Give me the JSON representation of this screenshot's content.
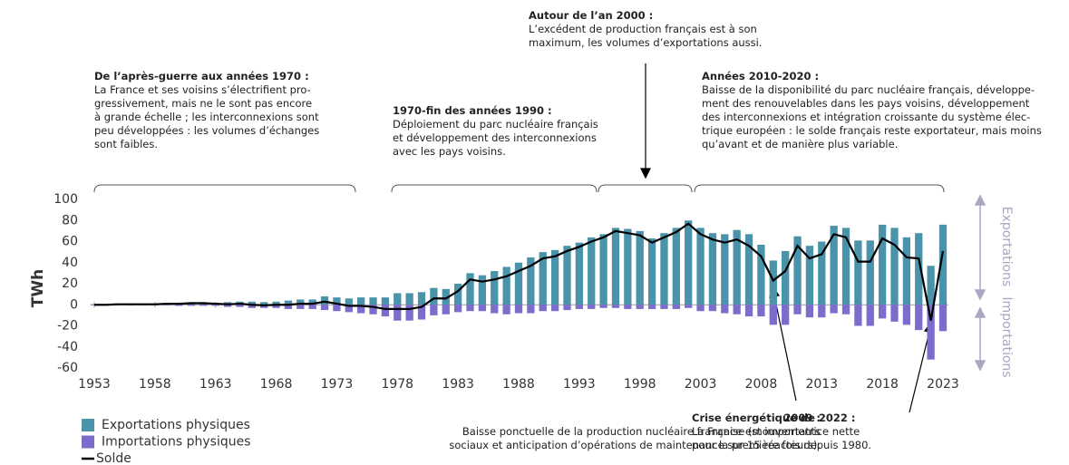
{
  "chart_data": {
    "type": "bar",
    "y_label": "TWh",
    "x": [
      1953,
      1954,
      1955,
      1956,
      1957,
      1958,
      1959,
      1960,
      1961,
      1962,
      1963,
      1964,
      1965,
      1966,
      1967,
      1968,
      1969,
      1970,
      1971,
      1972,
      1973,
      1974,
      1975,
      1976,
      1977,
      1978,
      1979,
      1980,
      1981,
      1982,
      1983,
      1984,
      1985,
      1986,
      1987,
      1988,
      1989,
      1990,
      1991,
      1992,
      1993,
      1994,
      1995,
      1996,
      1997,
      1998,
      1999,
      2000,
      2001,
      2002,
      2003,
      2004,
      2005,
      2006,
      2007,
      2008,
      2009,
      2010,
      2011,
      2012,
      2013,
      2014,
      2015,
      2016,
      2017,
      2018,
      2019,
      2020,
      2021,
      2022,
      2023
    ],
    "xlim": [
      1953,
      2023
    ],
    "xticks": [
      1953,
      1958,
      1963,
      1968,
      1973,
      1978,
      1983,
      1988,
      1993,
      1998,
      2003,
      2008,
      2013,
      2018,
      2023
    ],
    "ylim": [
      -60,
      100
    ],
    "yticks": [
      100,
      80,
      60,
      40,
      20,
      0,
      -20,
      -40,
      -60
    ],
    "grid": false,
    "series": [
      {
        "name": "Exportations physiques",
        "color": "#4a93aa",
        "values": [
          0.5,
          0.5,
          1,
          1,
          1,
          1,
          1.5,
          2,
          2.5,
          2.5,
          2,
          2.5,
          3,
          3,
          2.5,
          3,
          4,
          5,
          5,
          8,
          7,
          6,
          7,
          7,
          7,
          11,
          11,
          12,
          16,
          15,
          20,
          30,
          28,
          32,
          36,
          40,
          45,
          50,
          52,
          56,
          59,
          64,
          67,
          73,
          72,
          70,
          63,
          68,
          73,
          80,
          73,
          68,
          67,
          71,
          67,
          57,
          42,
          51,
          65,
          56,
          60,
          75,
          73,
          61,
          61,
          76,
          73,
          64,
          68,
          37,
          76
        ]
      },
      {
        "name": "Importations physiques",
        "color": "#7d6ccc",
        "values": [
          -0.5,
          -0.5,
          -0.5,
          -0.5,
          -0.5,
          -0.5,
          -0.5,
          -1,
          -1,
          -1,
          -1,
          -2,
          -2,
          -3,
          -3,
          -3,
          -4,
          -4,
          -4,
          -5,
          -6,
          -7,
          -8,
          -9,
          -11,
          -15,
          -15,
          -14,
          -10,
          -9,
          -7,
          -6,
          -6,
          -8,
          -9,
          -8,
          -8,
          -6,
          -6,
          -5,
          -4,
          -4,
          -3,
          -3,
          -4,
          -4,
          -4,
          -4,
          -4,
          -3,
          -6,
          -6,
          -8,
          -9,
          -11,
          -11,
          -19,
          -19,
          -9,
          -12,
          -12,
          -8,
          -9,
          -20,
          -20,
          -13,
          -16,
          -19,
          -24,
          -52,
          -25
        ]
      },
      {
        "name": "Solde",
        "type": "line",
        "color": "#000000",
        "values": [
          0,
          0,
          0.5,
          0.5,
          0.5,
          0.5,
          1,
          1,
          1.5,
          1.5,
          1,
          0.5,
          1,
          0,
          -0.5,
          0,
          0,
          1,
          1,
          3,
          1,
          -1,
          -1,
          -2,
          -4,
          -4,
          -4,
          -2,
          6,
          6,
          13,
          24,
          22,
          24,
          27,
          32,
          37,
          44,
          46,
          51,
          55,
          60,
          64,
          70,
          68,
          66,
          59,
          64,
          69,
          77,
          67,
          62,
          59,
          62,
          56,
          46,
          23,
          32,
          56,
          44,
          48,
          67,
          64,
          41,
          41,
          63,
          57,
          45,
          44,
          -15,
          51
        ]
      }
    ],
    "side_labels": [
      "Exportations",
      "Importations"
    ],
    "annotations": [
      {
        "title": "De l’après-guerre aux années 1970 :",
        "lines": [
          "La France et ses voisins s’électrifient pro-",
          "gressivement, mais ne le sont pas encore",
          "à grande échelle ; les interconnexions sont",
          "peu développées : les volumes d’échanges",
          "sont faibles."
        ]
      },
      {
        "title": "1970-fin des années 1990 :",
        "lines": [
          "Déploiement du parc nucléaire français",
          "et développement des interconnexions",
          "avec les pays voisins."
        ]
      },
      {
        "title": "Autour de l’an 2000 :",
        "lines": [
          "L’excédent de production français est à son",
          "maximum, les volumes d’exportations aussi."
        ]
      },
      {
        "title": "Années 2010-2020 :",
        "lines": [
          "Baisse de la disponibilité du parc nucléaire français, développe-",
          "ment des renouvelables dans les pays voisins, développement",
          "des interconnexions et intégration croissante du système élec-",
          "trique européen : le solde français reste exportateur, mais moins",
          "qu’avant et de manière plus variable."
        ]
      },
      {
        "title": "2009 :",
        "lines": [
          "Baisse ponctuelle de la production nucléaire française (mouvements",
          "sociaux et anticipation d’opérations de maintenance sur 15 réacteurs)."
        ]
      },
      {
        "title": "Crise énergétique de 2022 :",
        "lines": [
          "La France est importatrice nette",
          "pour la première fois depuis 1980."
        ]
      }
    ]
  }
}
